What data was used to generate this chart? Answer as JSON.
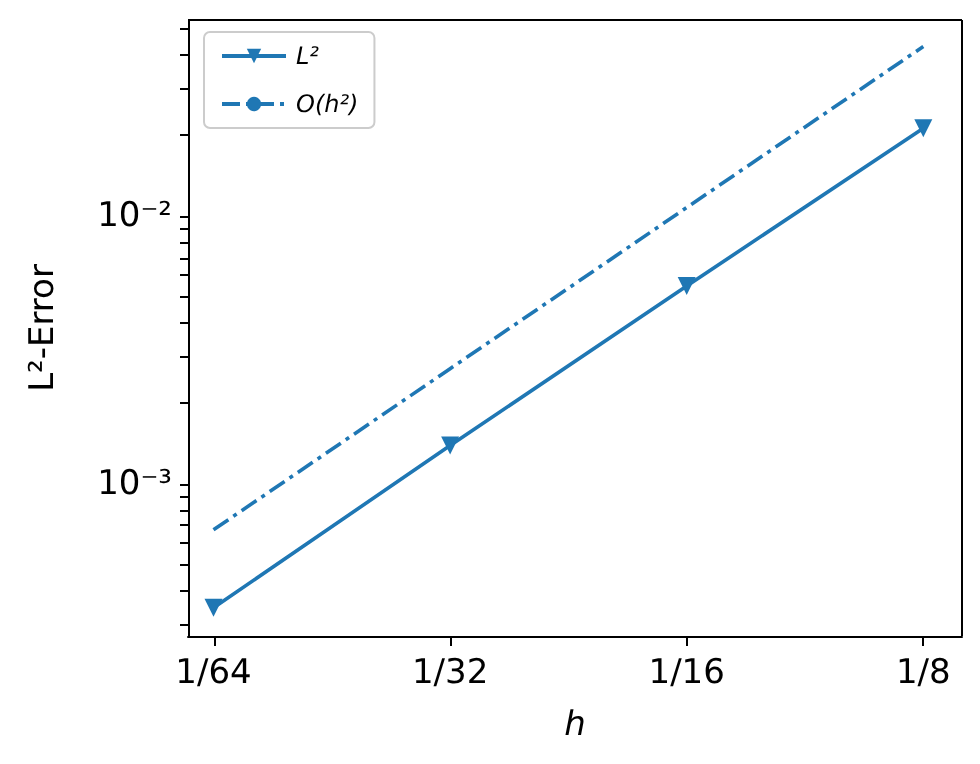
{
  "chart_data": {
    "type": "line",
    "xlabel": "h",
    "ylabel": "L²-Error",
    "log": "xy",
    "legend": "top left",
    "grid": false,
    "x": [
      0.015625,
      0.03125,
      0.0625,
      0.125
    ],
    "xlim": [
      0.0145,
      0.14
    ],
    "xticks": [
      {
        "value": 0.015625,
        "label": "1/64"
      },
      {
        "value": 0.03125,
        "label": "1/32"
      },
      {
        "value": 0.0625,
        "label": "1/16"
      },
      {
        "value": 0.125,
        "label": "1/8"
      }
    ],
    "ylim": [
      0.00027,
      0.054
    ],
    "yticks": [
      {
        "value": 0.0003,
        "label": null
      },
      {
        "value": 0.0004,
        "label": null
      },
      {
        "value": 0.0005,
        "label": null
      },
      {
        "value": 0.0006,
        "label": null
      },
      {
        "value": 0.0007,
        "label": null
      },
      {
        "value": 0.0008,
        "label": null
      },
      {
        "value": 0.0009,
        "label": null
      },
      {
        "value": 0.001,
        "label": "10⁻³"
      },
      {
        "value": 0.002,
        "label": null
      },
      {
        "value": 0.003,
        "label": null
      },
      {
        "value": 0.004,
        "label": null
      },
      {
        "value": 0.005,
        "label": null
      },
      {
        "value": 0.006,
        "label": null
      },
      {
        "value": 0.007,
        "label": null
      },
      {
        "value": 0.008,
        "label": null
      },
      {
        "value": 0.009,
        "label": null
      },
      {
        "value": 0.01,
        "label": "10⁻²"
      },
      {
        "value": 0.02,
        "label": null
      },
      {
        "value": 0.03,
        "label": null
      },
      {
        "value": 0.04,
        "label": null
      },
      {
        "value": 0.05,
        "label": null
      }
    ],
    "series": [
      {
        "name": "L²",
        "color": "#1f77b4",
        "marker": "triangle",
        "line_style": "solid",
        "values": [
          0.000344,
          0.00139,
          0.00548,
          0.0213
        ]
      },
      {
        "name": "O(h²)",
        "color": "#1f77b4",
        "marker": "none",
        "line_style": "dashed",
        "values": [
          0.000673,
          0.00269,
          0.01076,
          0.043
        ]
      }
    ]
  }
}
